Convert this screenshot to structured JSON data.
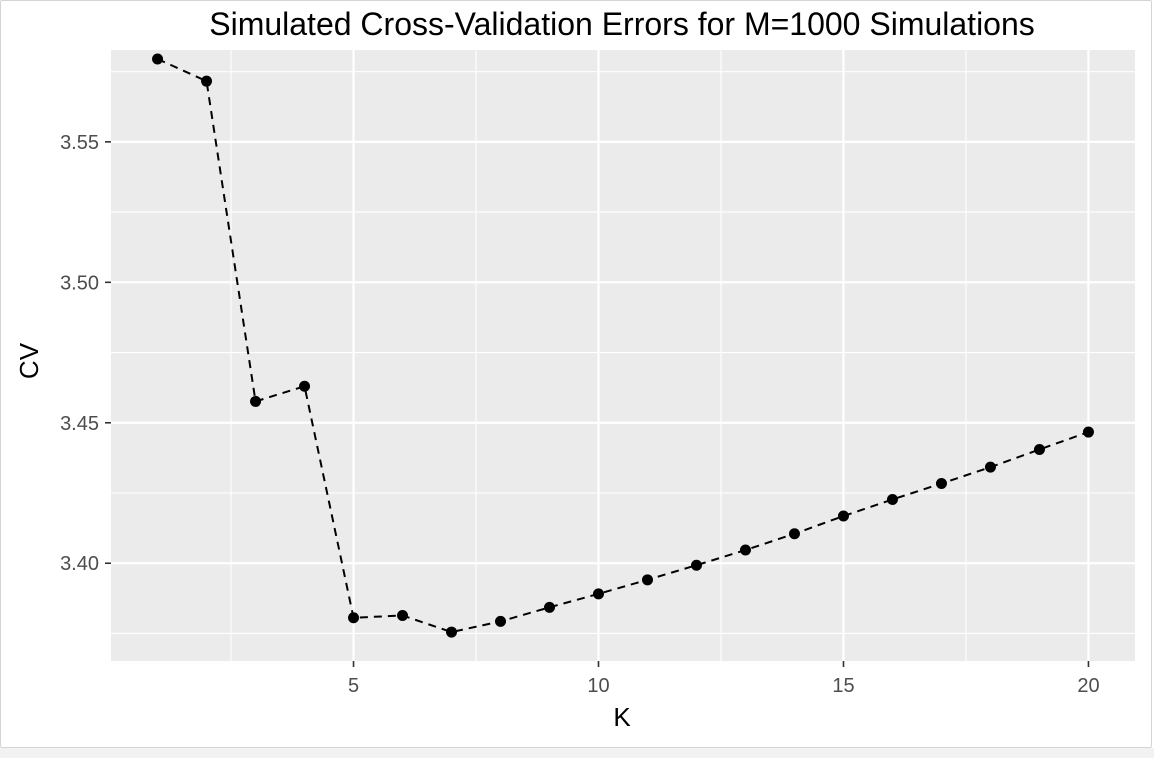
{
  "chart_data": {
    "type": "line",
    "title": "Simulated Cross-Validation Errors for M=1000 Simulations",
    "xlabel": "K",
    "ylabel": "CV",
    "x_ticks": [
      5,
      10,
      15,
      20
    ],
    "y_ticks": [
      3.4,
      3.45,
      3.5,
      3.55
    ],
    "y_tick_labels": [
      "3.40",
      "3.45",
      "3.50",
      "3.55"
    ],
    "xlim": [
      0.05,
      20.95
    ],
    "ylim": [
      3.3652,
      3.5827
    ],
    "grid": true,
    "line_style": "dashed",
    "series": [
      {
        "x": [
          1,
          2,
          3,
          4,
          5,
          6,
          7,
          8,
          9,
          10,
          11,
          12,
          13,
          14,
          15,
          16,
          17,
          18,
          19,
          20
        ],
        "values": [
          3.5795,
          3.5716,
          3.4576,
          3.463,
          3.3806,
          3.3814,
          3.3755,
          3.3793,
          3.3843,
          3.3891,
          3.3941,
          3.3993,
          3.4047,
          3.4105,
          3.4168,
          3.4227,
          3.4284,
          3.4342,
          3.4405,
          3.4467
        ]
      }
    ],
    "colors": {
      "panel": "#ebebeb",
      "grid": "#ffffff",
      "line": "#000000",
      "point": "#000000",
      "tick_text": "#4d4d4d",
      "tick_mark": "#333333"
    }
  }
}
